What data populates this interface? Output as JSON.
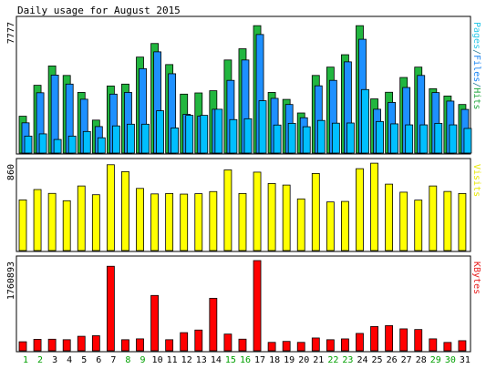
{
  "chart_data": [
    {
      "type": "bar",
      "title": "Daily usage for August 2015",
      "ymax_label": "7777",
      "ymax": 7777,
      "side_label": [
        {
          "text": "Pages",
          "color": "#2bc8e8"
        },
        {
          "text": "/",
          "color": "#2d7f9a"
        },
        {
          "text": "Files",
          "color": "#1985f3"
        },
        {
          "text": "/",
          "color": "#2d7f9a"
        },
        {
          "text": "Hits",
          "color": "#22a83f"
        }
      ],
      "categories": [
        "1",
        "2",
        "3",
        "4",
        "5",
        "6",
        "7",
        "8",
        "9",
        "10",
        "11",
        "12",
        "13",
        "14",
        "15",
        "16",
        "17",
        "18",
        "19",
        "20",
        "21",
        "22",
        "23",
        "24",
        "25",
        "26",
        "27",
        "28",
        "29",
        "30",
        "31"
      ],
      "weekend_days": [
        "1",
        "2",
        "8",
        "9",
        "15",
        "16",
        "22",
        "23",
        "29",
        "30"
      ],
      "series": [
        {
          "name": "Hits",
          "color": "#22b63f",
          "values": [
            2170,
            3990,
            5130,
            4570,
            3570,
            1940,
            3950,
            4060,
            5650,
            6450,
            5210,
            3470,
            3540,
            3670,
            5480,
            6140,
            7500,
            3570,
            3160,
            2360,
            4570,
            5060,
            5790,
            7500,
            3190,
            3580,
            4450,
            5060,
            3790,
            3360,
            2860
          ]
        },
        {
          "name": "Files",
          "color": "#1e90ff",
          "values": [
            1780,
            3550,
            4590,
            4060,
            3170,
            1560,
            3470,
            3570,
            4970,
            5960,
            4670,
            2280,
            2180,
            2580,
            4280,
            5480,
            6980,
            3220,
            2860,
            2080,
            3960,
            4280,
            5370,
            6700,
            2580,
            2980,
            3860,
            4570,
            3560,
            3060,
            2570
          ]
        },
        {
          "name": "Pages",
          "color": "#00bfff",
          "values": [
            1000,
            1130,
            800,
            1000,
            1270,
            900,
            1600,
            1700,
            1700,
            2490,
            1480,
            2220,
            2220,
            2580,
            1970,
            2020,
            3080,
            1650,
            1750,
            1550,
            1920,
            1760,
            1770,
            3740,
            1860,
            1720,
            1660,
            1660,
            1750,
            1660,
            1450
          ]
        }
      ]
    },
    {
      "type": "bar",
      "ymax_label": "860",
      "ymax": 860,
      "side_label": [
        {
          "text": "Visits",
          "color": "#e8e800"
        }
      ],
      "series": [
        {
          "name": "Visits",
          "color": "#ffff00",
          "values": [
            498,
            600,
            562,
            490,
            635,
            549,
            844,
            776,
            611,
            557,
            561,
            555,
            559,
            580,
            793,
            561,
            771,
            659,
            644,
            508,
            758,
            478,
            483,
            805,
            859,
            653,
            574,
            496,
            635,
            581,
            561
          ]
        }
      ]
    },
    {
      "type": "bar",
      "ymax_label": "1760893",
      "ymax": 1760893,
      "side_label": [
        {
          "text": "KBytes",
          "color": "#e82020"
        }
      ],
      "series": [
        {
          "name": "KBytes",
          "color": "#ff0000",
          "values": [
            176000,
            223000,
            226000,
            216000,
            283000,
            294000,
            1650000,
            216000,
            233000,
            1080000,
            216000,
            354000,
            405000,
            1025000,
            326000,
            227000,
            1760893,
            164000,
            183000,
            164000,
            250000,
            216000,
            232000,
            339000,
            474000,
            491000,
            428000,
            415000,
            233000,
            163000,
            197000
          ]
        }
      ]
    }
  ]
}
